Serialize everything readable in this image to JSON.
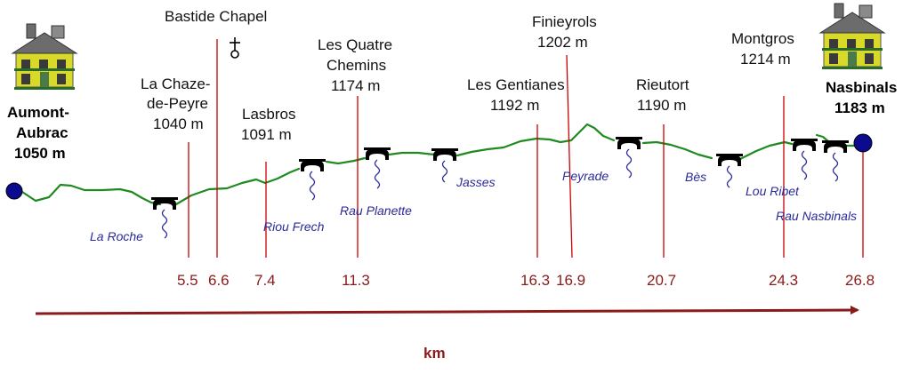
{
  "colors": {
    "profile": "#1f8a1f",
    "marker_line": "#cc0000",
    "axis": "#8b1a1a",
    "stream": "#2a2a9a",
    "endpoint": "#0b0b8f"
  },
  "start": {
    "name_line1": "Aumont-",
    "name_line2": "Aubrac",
    "altitude": "1050 m",
    "icon": "house-icon"
  },
  "end": {
    "name": "Nasbinals",
    "altitude": "1183 m",
    "icon": "house-icon"
  },
  "places": [
    {
      "id": "la-chaze",
      "lines": [
        "La Chaze-",
        "de-Peyre",
        "1040 m"
      ]
    },
    {
      "id": "bastide",
      "lines": [
        "Bastide Chapel"
      ],
      "icon": "chapel-cross-icon"
    },
    {
      "id": "lasbros",
      "lines": [
        "Lasbros",
        "1091 m"
      ]
    },
    {
      "id": "quatre-chemins",
      "lines": [
        "Les Quatre",
        "Chemins",
        "1174 m"
      ]
    },
    {
      "id": "gentianes",
      "lines": [
        "Les Gentianes",
        "1192 m"
      ]
    },
    {
      "id": "finieyrols",
      "lines": [
        "Finieyrols",
        "1202 m"
      ]
    },
    {
      "id": "rieutort",
      "lines": [
        "Rieutort",
        "1190 m"
      ]
    },
    {
      "id": "montgros",
      "lines": [
        "Montgros",
        "1214 m"
      ]
    }
  ],
  "streams": [
    {
      "id": "la-roche",
      "label": "La Roche",
      "icon": "bridge-icon"
    },
    {
      "id": "riou-frech",
      "label": "Riou Frech",
      "icon": "bridge-icon"
    },
    {
      "id": "rau-planette",
      "label": "Rau Planette",
      "icon": "bridge-icon"
    },
    {
      "id": "jasses",
      "label": "Jasses",
      "icon": "bridge-icon"
    },
    {
      "id": "peyrade",
      "label": "Peyrade",
      "icon": "bridge-icon"
    },
    {
      "id": "bes",
      "label": "Bès",
      "icon": "bridge-icon"
    },
    {
      "id": "lou-ribet",
      "label": "Lou Ribet",
      "icon": "bridge-icon"
    },
    {
      "id": "rau-nasbinals",
      "label": "Rau Nasbinals",
      "icon": "bridge-icon"
    }
  ],
  "km_marks": [
    "5.5",
    "6.6",
    "7.4",
    "11.3",
    "16.3",
    "16.9",
    "20.7",
    "24.3",
    "26.8"
  ],
  "axis": {
    "title": "km"
  }
}
